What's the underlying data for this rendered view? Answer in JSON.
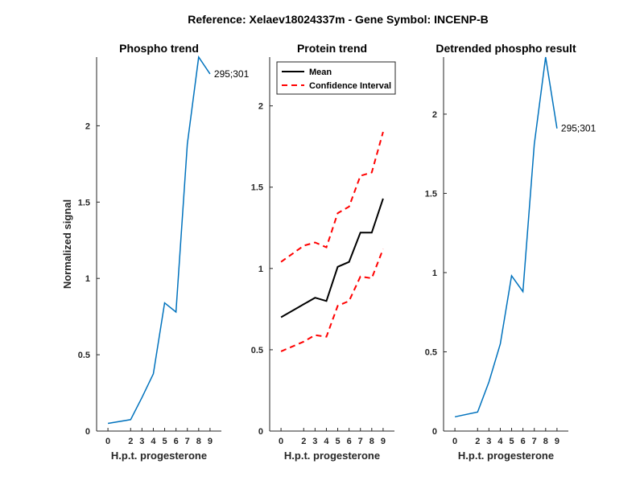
{
  "figure_title": "Reference:  Xelaev18024337m - Gene Symbol:  INCENP-B",
  "colors": {
    "trend": "#0072BD",
    "mean": "#000000",
    "ci": "#FF0000",
    "axis": "#262626"
  },
  "chart_data": [
    {
      "type": "line",
      "title": "Phospho trend",
      "xlabel": "H.p.t. progesterone",
      "ylabel": "Normalized signal",
      "x": [
        0,
        2,
        3,
        4,
        5,
        6,
        7,
        8,
        9
      ],
      "x_tick_labels": [
        "0",
        "2",
        "3",
        "4",
        "5",
        "6",
        "7",
        "8",
        "9"
      ],
      "ylim": [
        0,
        2.45
      ],
      "y_ticks": [
        0,
        0.5,
        1,
        1.5,
        2
      ],
      "y_tick_labels": [
        "0",
        "0.5",
        "1",
        "1.5",
        "2"
      ],
      "series": [
        {
          "name": "Phospho",
          "values": [
            0.05,
            0.075,
            0.22,
            0.375,
            0.84,
            0.78,
            1.88,
            2.45,
            2.34
          ]
        }
      ],
      "annotation": {
        "text": "295;301",
        "x": 9,
        "y": 2.34
      }
    },
    {
      "type": "line",
      "title": "Protein trend",
      "xlabel": "H.p.t. progesterone",
      "ylabel": "",
      "x": [
        0,
        2,
        3,
        4,
        5,
        6,
        7,
        8,
        9
      ],
      "x_tick_labels": [
        "0",
        "2",
        "3",
        "4",
        "5",
        "6",
        "7",
        "8",
        "9"
      ],
      "ylim": [
        0,
        2.3
      ],
      "y_ticks": [
        0,
        0.5,
        1,
        1.5,
        2
      ],
      "y_tick_labels": [
        "0",
        "0.5",
        "1",
        "1.5",
        "2"
      ],
      "legend": {
        "placement": "top-left",
        "entries": [
          "Mean",
          "Confidence Interval"
        ]
      },
      "series": [
        {
          "name": "Mean",
          "style": "solid",
          "values": [
            0.7,
            0.78,
            0.82,
            0.8,
            1.01,
            1.04,
            1.22,
            1.22,
            1.43
          ]
        },
        {
          "name": "Confidence Interval",
          "style": "dashed",
          "values": [
            1.04,
            1.14,
            1.16,
            1.13,
            1.34,
            1.38,
            1.57,
            1.59,
            1.84
          ]
        },
        {
          "name": "Confidence Interval (lower)",
          "style": "dashed",
          "values": [
            0.49,
            0.55,
            0.59,
            0.58,
            0.77,
            0.8,
            0.95,
            0.94,
            1.12
          ]
        }
      ]
    },
    {
      "type": "line",
      "title": "Detrended phospho result",
      "xlabel": "H.p.t. progesterone",
      "ylabel": "",
      "x": [
        0,
        2,
        3,
        4,
        5,
        6,
        7,
        8,
        9
      ],
      "x_tick_labels": [
        "0",
        "2",
        "3",
        "4",
        "5",
        "6",
        "7",
        "8",
        "9"
      ],
      "ylim": [
        0,
        2.36
      ],
      "y_ticks": [
        0,
        0.5,
        1,
        1.5,
        2
      ],
      "y_tick_labels": [
        "0",
        "0.5",
        "1",
        "1.5",
        "2"
      ],
      "series": [
        {
          "name": "Detrended",
          "values": [
            0.09,
            0.12,
            0.31,
            0.55,
            0.98,
            0.88,
            1.81,
            2.36,
            1.91
          ]
        }
      ],
      "annotation": {
        "text": "295;301",
        "x": 9,
        "y": 1.91
      }
    }
  ]
}
